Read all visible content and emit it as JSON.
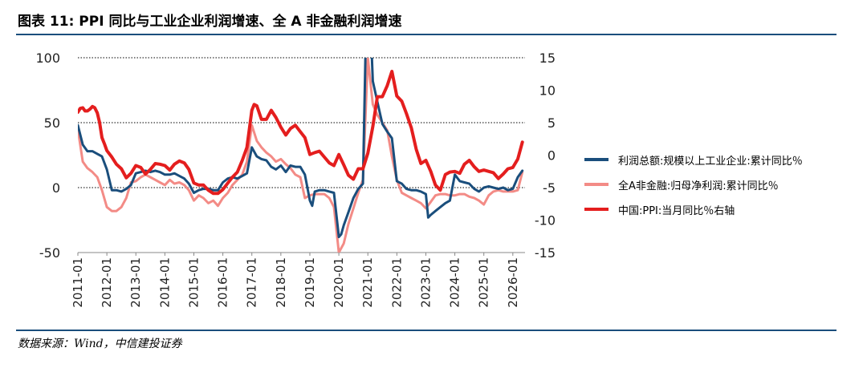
{
  "title": "图表 11: PPI 同比与工业企业利润增速、全 A 非金融利润增速",
  "source": "数据来源：Wind，中信建投证券",
  "colors": {
    "accent_rule": "#1a4e7c"
  },
  "chart_data": {
    "type": "line",
    "categories": [
      "2011-01",
      "2012-01",
      "2013-01",
      "2014-01",
      "2015-01",
      "2016-01",
      "2017-01",
      "2018-01",
      "2019-01",
      "2020-01",
      "2021-01",
      "2022-01",
      "2023-01",
      "2024-01",
      "2025-01",
      "2026-01"
    ],
    "x_range": [
      2011.0,
      2026.42
    ],
    "y_left": {
      "range": [
        -50,
        100
      ],
      "ticks": [
        "100",
        "50",
        "0",
        "-50"
      ],
      "tick_values": [
        100,
        50,
        0,
        -50
      ]
    },
    "y_right": {
      "range": [
        -15,
        15
      ],
      "ticks": [
        "15",
        "10",
        "5",
        "0",
        "-5",
        "-10",
        "-15"
      ],
      "tick_values": [
        15,
        10,
        5,
        0,
        -5,
        -10,
        -15
      ]
    },
    "grid": "dotted horizontal at left-axis ticks",
    "legend_position": "right",
    "series": [
      {
        "name": "利润总额:规模以上工业企业:累计同比％",
        "axis": "left",
        "color": "#1a4e7c",
        "x": [
          2011.0,
          2011.17,
          2011.33,
          2011.5,
          2011.67,
          2011.83,
          2012.0,
          2012.17,
          2012.33,
          2012.5,
          2012.67,
          2012.83,
          2013.0,
          2013.17,
          2013.33,
          2013.5,
          2013.67,
          2013.83,
          2014.0,
          2014.17,
          2014.33,
          2014.5,
          2014.67,
          2014.83,
          2015.0,
          2015.17,
          2015.33,
          2015.5,
          2015.67,
          2015.83,
          2016.0,
          2016.17,
          2016.33,
          2016.5,
          2016.67,
          2016.83,
          2017.0,
          2017.17,
          2017.33,
          2017.5,
          2017.67,
          2017.83,
          2018.0,
          2018.17,
          2018.33,
          2018.5,
          2018.67,
          2018.83,
          2019.0,
          2019.08,
          2019.17,
          2019.33,
          2019.5,
          2019.67,
          2019.83,
          2020.0,
          2020.08,
          2020.17,
          2020.33,
          2020.5,
          2020.67,
          2020.83,
          2021.0,
          2021.08,
          2021.17,
          2021.33,
          2021.5,
          2021.67,
          2021.83,
          2022.0,
          2022.17,
          2022.33,
          2022.5,
          2022.67,
          2022.83,
          2023.0,
          2023.08,
          2023.17,
          2023.33,
          2023.5,
          2023.67,
          2023.83,
          2024.0,
          2024.17,
          2024.33,
          2024.5,
          2024.67,
          2024.83,
          2025.0,
          2025.17,
          2025.33,
          2025.5,
          2025.67,
          2025.83,
          2026.0,
          2026.17,
          2026.33
        ],
        "y": [
          48,
          33,
          28,
          28,
          26,
          24,
          14,
          -2,
          -2,
          -3,
          -1,
          2,
          11,
          12,
          13,
          12,
          13,
          12,
          10,
          10,
          11,
          9,
          7,
          3,
          -4,
          -2,
          -1,
          -1,
          -2,
          -2,
          4,
          7,
          8,
          7,
          9,
          11,
          31,
          24,
          22,
          21,
          16,
          14,
          17,
          12,
          17,
          16,
          16,
          10,
          -10,
          -14,
          -3,
          -2,
          -2,
          -3,
          -4,
          -38,
          -36,
          -29,
          -19,
          -8,
          -1,
          3,
          196,
          134,
          82,
          66,
          49,
          43,
          38,
          5,
          3,
          -1,
          -2,
          -2,
          -3,
          -5,
          -23,
          -21,
          -18,
          -15,
          -12,
          -10,
          10,
          5,
          4,
          3,
          -1,
          -3,
          0,
          1,
          0,
          -1,
          0,
          -2,
          -1,
          8,
          13
        ]
      },
      {
        "name": "全A非金融:归母净利润:累计同比％",
        "axis": "left",
        "color": "#f38b86",
        "x": [
          2011.0,
          2011.17,
          2011.33,
          2011.5,
          2011.67,
          2011.83,
          2012.0,
          2012.17,
          2012.33,
          2012.5,
          2012.67,
          2012.83,
          2013.0,
          2013.17,
          2013.33,
          2013.5,
          2013.67,
          2013.83,
          2014.0,
          2014.17,
          2014.33,
          2014.5,
          2014.67,
          2014.83,
          2015.0,
          2015.17,
          2015.33,
          2015.5,
          2015.67,
          2015.83,
          2016.0,
          2016.17,
          2016.33,
          2016.5,
          2016.67,
          2016.83,
          2017.0,
          2017.17,
          2017.33,
          2017.5,
          2017.67,
          2017.83,
          2018.0,
          2018.17,
          2018.33,
          2018.5,
          2018.67,
          2018.83,
          2019.0,
          2019.17,
          2019.33,
          2019.5,
          2019.67,
          2019.83,
          2020.0,
          2020.17,
          2020.33,
          2020.5,
          2020.67,
          2020.83,
          2021.0,
          2021.17,
          2021.33,
          2021.5,
          2021.67,
          2021.83,
          2022.0,
          2022.17,
          2022.33,
          2022.5,
          2022.67,
          2022.83,
          2023.0,
          2023.17,
          2023.33,
          2023.5,
          2023.67,
          2023.83,
          2024.0,
          2024.17,
          2024.33,
          2024.5,
          2024.67,
          2024.83,
          2025.0,
          2025.17,
          2025.33,
          2025.5,
          2025.67,
          2025.83,
          2026.0,
          2026.17,
          2026.33
        ],
        "y": [
          45,
          20,
          15,
          12,
          8,
          -2,
          -15,
          -18,
          -18,
          -15,
          -8,
          4,
          5,
          8,
          10,
          8,
          6,
          4,
          2,
          6,
          3,
          4,
          2,
          -2,
          -10,
          -6,
          -8,
          -12,
          -10,
          -14,
          -8,
          -4,
          2,
          6,
          10,
          20,
          48,
          36,
          31,
          27,
          24,
          20,
          22,
          18,
          15,
          10,
          8,
          -8,
          -6,
          -5,
          -5,
          -5,
          -8,
          -15,
          -50,
          -43,
          -28,
          -16,
          -4,
          6,
          100,
          64,
          56,
          50,
          44,
          24,
          6,
          -4,
          -6,
          -8,
          -10,
          -12,
          -16,
          -11,
          -6,
          -5,
          -5,
          -6,
          -6,
          -5,
          -5,
          -7,
          -8,
          -10,
          -13,
          -6,
          -3,
          -2,
          -3,
          -3,
          -3,
          -2,
          12
        ]
      },
      {
        "name": "中国:PPI:当月同比％右轴",
        "axis": "right",
        "color": "#e41e1e",
        "x": [
          2011.0,
          2011.08,
          2011.17,
          2011.25,
          2011.33,
          2011.42,
          2011.5,
          2011.58,
          2011.67,
          2011.75,
          2011.83,
          2011.92,
          2012.0,
          2012.17,
          2012.33,
          2012.5,
          2012.67,
          2012.83,
          2013.0,
          2013.17,
          2013.33,
          2013.5,
          2013.67,
          2013.83,
          2014.0,
          2014.17,
          2014.33,
          2014.5,
          2014.67,
          2014.83,
          2015.0,
          2015.17,
          2015.33,
          2015.5,
          2015.67,
          2015.83,
          2016.0,
          2016.17,
          2016.33,
          2016.5,
          2016.67,
          2016.83,
          2017.0,
          2017.08,
          2017.17,
          2017.33,
          2017.5,
          2017.67,
          2017.83,
          2018.0,
          2018.17,
          2018.33,
          2018.5,
          2018.67,
          2018.83,
          2019.0,
          2019.17,
          2019.33,
          2019.5,
          2019.67,
          2019.83,
          2020.0,
          2020.17,
          2020.33,
          2020.5,
          2020.67,
          2020.83,
          2021.0,
          2021.17,
          2021.33,
          2021.5,
          2021.67,
          2021.83,
          2022.0,
          2022.17,
          2022.33,
          2022.5,
          2022.67,
          2022.83,
          2023.0,
          2023.17,
          2023.33,
          2023.5,
          2023.67,
          2023.83,
          2024.0,
          2024.17,
          2024.33,
          2024.5,
          2024.67,
          2024.83,
          2025.0,
          2025.17,
          2025.33,
          2025.5,
          2025.67,
          2025.83,
          2026.0,
          2026.17,
          2026.33
        ],
        "y": [
          6.6,
          7.2,
          7.3,
          6.8,
          6.8,
          7.1,
          7.5,
          7.3,
          6.5,
          5.0,
          2.7,
          1.7,
          0.7,
          -0.3,
          -1.4,
          -2.1,
          -3.5,
          -2.8,
          -1.6,
          -1.9,
          -2.9,
          -2.2,
          -1.3,
          -1.4,
          -1.6,
          -2.3,
          -1.4,
          -0.9,
          -1.2,
          -2.2,
          -4.3,
          -4.6,
          -4.6,
          -5.4,
          -5.9,
          -5.9,
          -5.3,
          -4.3,
          -3.4,
          -2.6,
          -0.8,
          1.2,
          6.9,
          7.8,
          7.6,
          5.5,
          5.5,
          6.9,
          5.8,
          4.3,
          3.1,
          4.1,
          4.6,
          3.6,
          2.7,
          0.1,
          0.4,
          0.6,
          -0.3,
          -1.2,
          -1.6,
          0.1,
          -1.5,
          -3.1,
          -3.7,
          -2.1,
          -2.1,
          0.3,
          4.4,
          9.0,
          9.0,
          10.7,
          12.9,
          9.1,
          8.3,
          6.4,
          4.2,
          0.9,
          -1.3,
          -0.8,
          -2.5,
          -4.6,
          -5.4,
          -3.0,
          -2.6,
          -2.5,
          -2.8,
          -1.4,
          -0.8,
          -1.8,
          -2.5,
          -2.3,
          -2.5,
          -2.7,
          -3.6,
          -2.9,
          -2.1,
          -1.9,
          -0.6,
          2.0
        ]
      }
    ]
  }
}
